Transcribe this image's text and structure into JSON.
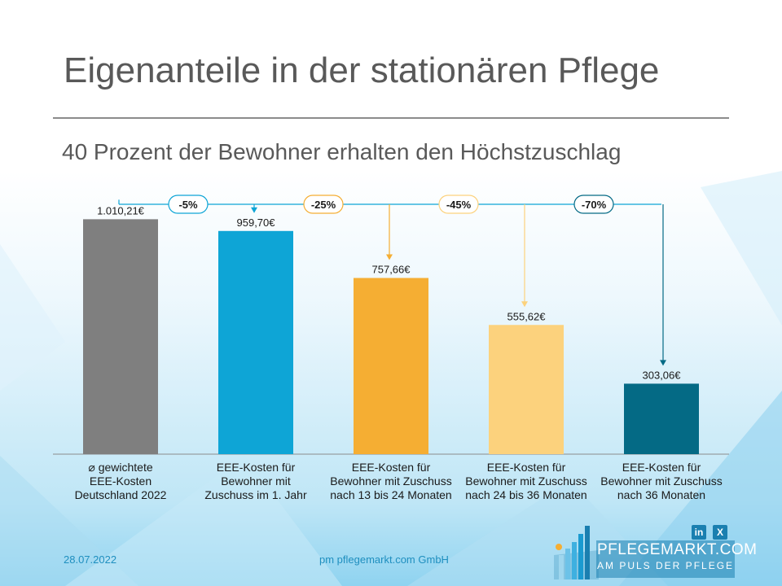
{
  "title": "Eigenanteile in der stationären Pflege",
  "subtitle": "40 Prozent der Bewohner erhalten den Höchstzuschlag",
  "chart_data": {
    "type": "bar",
    "categories": [
      [
        "⌀ gewichtete",
        "EEE-Kosten",
        "Deutschland 2022"
      ],
      [
        "EEE-Kosten für",
        "Bewohner mit",
        "Zuschuss im 1. Jahr"
      ],
      [
        "EEE-Kosten für",
        "Bewohner mit Zuschuss",
        "nach 13 bis 24 Monaten"
      ],
      [
        "EEE-Kosten für",
        "Bewohner mit Zuschuss",
        "nach 24 bis 36 Monaten"
      ],
      [
        "EEE-Kosten für",
        "Bewohner mit Zuschuss",
        "nach 36 Monaten"
      ]
    ],
    "values": [
      1010.21,
      959.7,
      757.66,
      555.62,
      303.06
    ],
    "value_labels": [
      "1.010,21€",
      "959,70€",
      "757,66€",
      "555,62€",
      "303,06€"
    ],
    "colors": [
      "#7f7f7f",
      "#0ea5d6",
      "#f5ae33",
      "#fcd27d",
      "#046a85"
    ],
    "ylim": [
      0,
      1050
    ],
    "reductions": [
      {
        "label": "-5%",
        "target_index": 1,
        "color": "#0ea5d6"
      },
      {
        "label": "-25%",
        "target_index": 2,
        "color": "#f5ae33"
      },
      {
        "label": "-45%",
        "target_index": 3,
        "color": "#fcd27d"
      },
      {
        "label": "-70%",
        "target_index": 4,
        "color": "#046a85"
      }
    ]
  },
  "footer": {
    "date": "28.07.2022",
    "company": "pm pflegemarkt.com GmbH"
  },
  "brand": {
    "name": "PFLEGEMARKT.COM",
    "tagline": "AM PULS DER PFLEGE",
    "social": [
      {
        "icon": "linkedin-icon",
        "text": "in"
      },
      {
        "icon": "xing-icon",
        "text": "X"
      }
    ]
  }
}
